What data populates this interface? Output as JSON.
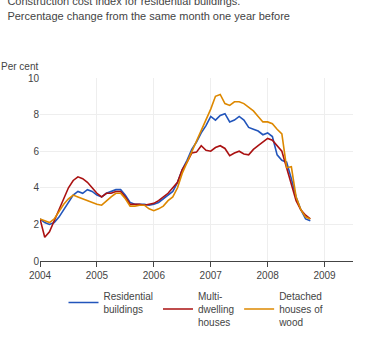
{
  "chart_data": {
    "type": "line",
    "title": "Construction cost index for residential buildings.",
    "subtitle": "Percentage change from the same month one year before",
    "ylabel": "Per cent",
    "x": [
      2004.0,
      2004.0833333333333,
      2004.1666666666667,
      2004.25,
      2004.3333333333333,
      2004.4166666666667,
      2004.5,
      2004.5833333333333,
      2004.6666666666667,
      2004.75,
      2004.8333333333333,
      2004.9166666666667,
      2005.0,
      2005.0833333333333,
      2005.1666666666667,
      2005.25,
      2005.3333333333333,
      2005.4166666666667,
      2005.5,
      2005.5833333333333,
      2005.6666666666667,
      2005.75,
      2005.8333333333333,
      2005.9166666666667,
      2006.0,
      2006.0833333333333,
      2006.1666666666667,
      2006.25,
      2006.3333333333333,
      2006.4166666666667,
      2006.5,
      2006.5833333333333,
      2006.6666666666667,
      2006.75,
      2006.8333333333333,
      2006.9166666666667,
      2007.0,
      2007.0833333333333,
      2007.1666666666667,
      2007.25,
      2007.3333333333333,
      2007.4166666666667,
      2007.5,
      2007.5833333333333,
      2007.6666666666667,
      2007.75,
      2007.8333333333333,
      2007.9166666666667,
      2008.0,
      2008.0833333333333,
      2008.1666666666667,
      2008.25,
      2008.3333333333333,
      2008.4166666666667,
      2008.5,
      2008.5833333333333,
      2008.6666666666667,
      2008.75
    ],
    "series": [
      {
        "name": "Residential\nbuildings",
        "color": "#2255bb",
        "values": [
          2.3,
          2.1,
          2.0,
          2.1,
          2.4,
          2.8,
          3.2,
          3.6,
          3.8,
          3.7,
          3.9,
          3.8,
          3.6,
          3.5,
          3.7,
          3.8,
          3.9,
          3.9,
          3.6,
          3.2,
          3.1,
          3.1,
          3.1,
          3.05,
          3.1,
          3.2,
          3.4,
          3.6,
          3.8,
          4.3,
          5.0,
          5.5,
          6.1,
          6.5,
          7.0,
          7.4,
          7.9,
          7.7,
          7.95,
          8.05,
          7.6,
          7.7,
          7.9,
          7.7,
          7.3,
          7.2,
          7.1,
          6.9,
          7.0,
          6.8,
          5.8,
          5.5,
          5.4,
          4.5,
          3.5,
          2.8,
          2.3,
          2.2
        ]
      },
      {
        "name": "Multi-\ndwelling\nhouses",
        "color": "#aa1111",
        "values": [
          2.3,
          1.3,
          1.6,
          2.2,
          2.8,
          3.5,
          4.0,
          4.4,
          4.6,
          4.5,
          4.3,
          4.0,
          3.7,
          3.5,
          3.7,
          3.7,
          3.8,
          3.8,
          3.5,
          3.1,
          3.1,
          3.1,
          3.05,
          3.1,
          3.15,
          3.3,
          3.5,
          3.7,
          4.0,
          4.3,
          5.0,
          5.4,
          5.9,
          5.95,
          6.3,
          6.05,
          6.0,
          6.2,
          6.3,
          6.15,
          5.75,
          5.9,
          6.0,
          5.85,
          5.8,
          6.1,
          6.3,
          6.5,
          6.7,
          6.6,
          6.3,
          6.0,
          5.1,
          4.2,
          3.3,
          2.8,
          2.5,
          2.3
        ]
      },
      {
        "name": "Detached\nhouses of\nwood",
        "color": "#dd8800",
        "values": [
          2.3,
          2.2,
          2.1,
          2.3,
          2.7,
          3.1,
          3.4,
          3.6,
          3.5,
          3.4,
          3.3,
          3.2,
          3.1,
          3.05,
          3.3,
          3.5,
          3.7,
          3.7,
          3.4,
          3.0,
          3.0,
          3.05,
          3.05,
          2.85,
          2.75,
          2.85,
          3.0,
          3.3,
          3.5,
          4.0,
          4.8,
          5.4,
          6.0,
          6.5,
          7.1,
          7.7,
          8.3,
          9.0,
          9.1,
          8.6,
          8.5,
          8.7,
          8.7,
          8.6,
          8.4,
          8.2,
          7.9,
          7.6,
          7.6,
          7.5,
          7.2,
          6.95,
          5.1,
          5.15,
          3.5,
          2.8,
          2.4,
          2.3
        ]
      }
    ],
    "xlim": [
      2004.0,
      2009.5
    ],
    "xticks": [
      2004,
      2005,
      2006,
      2007,
      2008,
      2009
    ],
    "ylim": [
      0,
      10
    ],
    "yticks": [
      0,
      2,
      4,
      6,
      8,
      10
    ],
    "grid": true,
    "legend": "bottom"
  }
}
